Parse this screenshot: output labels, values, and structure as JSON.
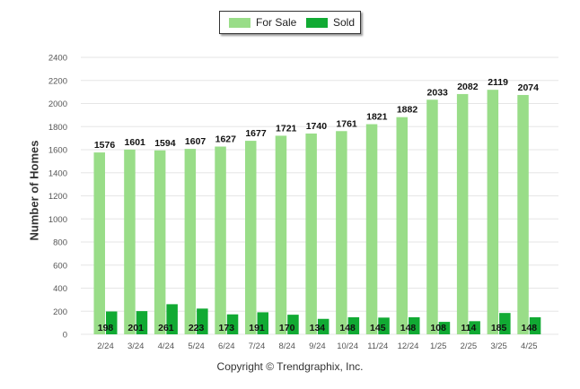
{
  "legend": {
    "for_sale_label": "For Sale",
    "sold_label": "Sold"
  },
  "copyright": "Copyright © Trendgraphix, Inc.",
  "chart_data": {
    "type": "bar",
    "categories": [
      "2/24",
      "3/24",
      "4/24",
      "5/24",
      "6/24",
      "7/24",
      "8/24",
      "9/24",
      "10/24",
      "11/24",
      "12/24",
      "1/25",
      "2/25",
      "3/25",
      "4/25"
    ],
    "series": [
      {
        "name": "For Sale",
        "color": "#99DD88",
        "values": [
          1576,
          1601,
          1594,
          1607,
          1627,
          1677,
          1721,
          1740,
          1761,
          1821,
          1882,
          2033,
          2082,
          2119,
          2074
        ]
      },
      {
        "name": "Sold",
        "color": "#11AA33",
        "values": [
          198,
          201,
          261,
          223,
          173,
          191,
          170,
          134,
          148,
          145,
          148,
          108,
          114,
          185,
          148
        ]
      }
    ],
    "ylabel": "Number of Homes",
    "ylim": [
      0,
      2400
    ],
    "yticks": [
      0,
      200,
      400,
      600,
      800,
      1000,
      1200,
      1400,
      1600,
      1800,
      2000,
      2200,
      2400
    ],
    "grid": true,
    "legend_position": "top-center"
  }
}
